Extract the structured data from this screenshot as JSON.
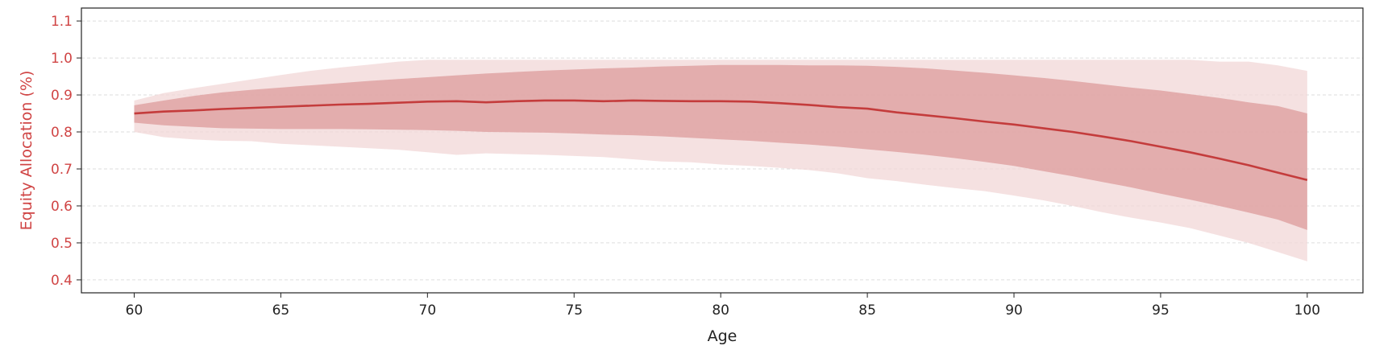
{
  "chart_data": {
    "type": "area",
    "title": "",
    "xlabel": "Age",
    "ylabel": "Equity Allocation (%)",
    "xlim": [
      58.2,
      101.9
    ],
    "ylim": [
      0.365,
      1.135
    ],
    "xticks": [
      60,
      65,
      70,
      75,
      80,
      85,
      90,
      95,
      100
    ],
    "yticks": [
      0.4,
      0.5,
      0.6,
      0.7,
      0.8,
      0.9,
      1.0,
      1.1
    ],
    "xtick_labels": [
      "60",
      "65",
      "70",
      "75",
      "80",
      "85",
      "90",
      "95",
      "100"
    ],
    "ytick_labels": [
      "0.4",
      "0.5",
      "0.6",
      "0.7",
      "0.8",
      "0.9",
      "1.0",
      "1.1"
    ],
    "grid": "horizontal-dashed",
    "legend": "none",
    "colors": {
      "line": "#c43c3c",
      "inner_band": "#d98c8c",
      "outer_band": "#f2d7d7",
      "ylabel": "#d04545",
      "ytick": "#d04545",
      "xtick": "#222222",
      "grid": "#dddddd",
      "frame": "#222222"
    },
    "x": [
      60,
      61,
      62,
      63,
      64,
      65,
      66,
      67,
      68,
      69,
      70,
      71,
      72,
      73,
      74,
      75,
      76,
      77,
      78,
      79,
      80,
      81,
      82,
      83,
      84,
      85,
      86,
      87,
      88,
      89,
      90,
      91,
      92,
      93,
      94,
      95,
      96,
      97,
      98,
      99,
      100
    ],
    "series": [
      {
        "role": "median",
        "values": [
          0.85,
          0.855,
          0.858,
          0.862,
          0.865,
          0.868,
          0.871,
          0.874,
          0.876,
          0.879,
          0.882,
          0.883,
          0.88,
          0.883,
          0.885,
          0.885,
          0.883,
          0.885,
          0.884,
          0.883,
          0.883,
          0.882,
          0.878,
          0.873,
          0.867,
          0.863,
          0.853,
          0.845,
          0.837,
          0.828,
          0.82,
          0.81,
          0.8,
          0.788,
          0.775,
          0.76,
          0.745,
          0.728,
          0.71,
          0.69,
          0.67
        ]
      },
      {
        "role": "inner_band",
        "lower": [
          0.825,
          0.818,
          0.814,
          0.81,
          0.809,
          0.808,
          0.808,
          0.808,
          0.807,
          0.806,
          0.805,
          0.803,
          0.8,
          0.799,
          0.798,
          0.796,
          0.793,
          0.791,
          0.788,
          0.784,
          0.78,
          0.776,
          0.771,
          0.766,
          0.76,
          0.753,
          0.746,
          0.738,
          0.729,
          0.719,
          0.708,
          0.694,
          0.68,
          0.665,
          0.65,
          0.633,
          0.617,
          0.6,
          0.582,
          0.563,
          0.535
        ],
        "upper": [
          0.872,
          0.885,
          0.897,
          0.907,
          0.914,
          0.92,
          0.926,
          0.932,
          0.938,
          0.943,
          0.948,
          0.953,
          0.958,
          0.962,
          0.966,
          0.969,
          0.972,
          0.974,
          0.977,
          0.979,
          0.981,
          0.981,
          0.981,
          0.98,
          0.98,
          0.979,
          0.976,
          0.972,
          0.966,
          0.96,
          0.953,
          0.946,
          0.938,
          0.929,
          0.92,
          0.912,
          0.902,
          0.892,
          0.88,
          0.87,
          0.85
        ]
      },
      {
        "role": "outer_band",
        "lower": [
          0.8,
          0.786,
          0.78,
          0.776,
          0.775,
          0.768,
          0.764,
          0.76,
          0.756,
          0.752,
          0.745,
          0.738,
          0.742,
          0.74,
          0.738,
          0.735,
          0.732,
          0.726,
          0.72,
          0.718,
          0.712,
          0.708,
          0.703,
          0.697,
          0.688,
          0.675,
          0.667,
          0.657,
          0.648,
          0.64,
          0.628,
          0.615,
          0.6,
          0.583,
          0.568,
          0.555,
          0.54,
          0.52,
          0.5,
          0.475,
          0.45
        ],
        "upper": [
          0.885,
          0.905,
          0.918,
          0.93,
          0.942,
          0.954,
          0.965,
          0.974,
          0.982,
          0.99,
          0.995,
          0.995,
          0.995,
          0.995,
          0.995,
          0.995,
          0.995,
          0.995,
          0.995,
          0.995,
          0.995,
          0.995,
          0.995,
          0.995,
          0.995,
          0.995,
          0.995,
          0.995,
          0.995,
          0.995,
          0.995,
          0.995,
          0.995,
          0.995,
          0.995,
          0.995,
          0.995,
          0.99,
          0.99,
          0.98,
          0.965
        ]
      }
    ]
  }
}
